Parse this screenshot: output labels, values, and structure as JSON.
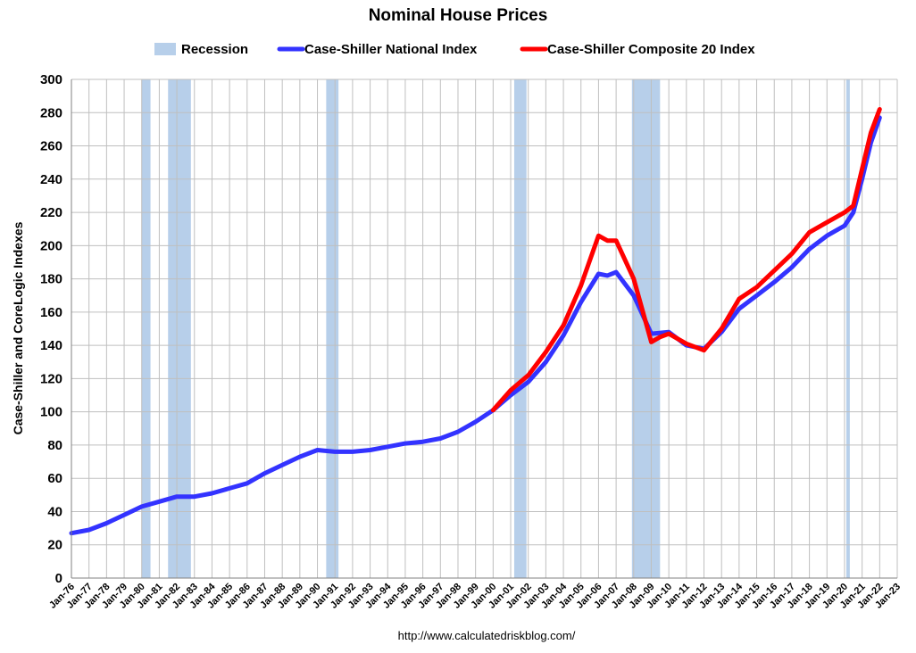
{
  "chart_data": {
    "type": "line",
    "title": "Nominal House Prices",
    "ylabel": "Case-Shiller and CoreLogic Indexes",
    "footer": "http://www.calculatedriskblog.com/",
    "ylim": [
      0,
      300
    ],
    "yticks": [
      0,
      20,
      40,
      60,
      80,
      100,
      120,
      140,
      160,
      180,
      200,
      220,
      240,
      260,
      280,
      300
    ],
    "xlim": [
      1976.0,
      2023.0
    ],
    "grid": true,
    "legend_position": "top",
    "xtick_labels": [
      "Jan-76",
      "Jan-77",
      "Jan-78",
      "Jan-79",
      "Jan-80",
      "Jan-81",
      "Jan-82",
      "Jan-83",
      "Jan-84",
      "Jan-85",
      "Jan-86",
      "Jan-87",
      "Jan-88",
      "Jan-89",
      "Jan-90",
      "Jan-91",
      "Jan-92",
      "Jan-93",
      "Jan-94",
      "Jan-95",
      "Jan-96",
      "Jan-97",
      "Jan-98",
      "Jan-99",
      "Jan-00",
      "Jan-01",
      "Jan-02",
      "Jan-03",
      "Jan-04",
      "Jan-05",
      "Jan-06",
      "Jan-07",
      "Jan-08",
      "Jan-09",
      "Jan-10",
      "Jan-11",
      "Jan-12",
      "Jan-13",
      "Jan-14",
      "Jan-15",
      "Jan-16",
      "Jan-17",
      "Jan-18",
      "Jan-19",
      "Jan-20",
      "Jan-21",
      "Jan-22",
      "Jan-23"
    ],
    "recession": {
      "name": "Recession",
      "color": "#b7cfea",
      "periods": [
        [
          1980.0,
          1980.5
        ],
        [
          1981.5,
          1982.8
        ],
        [
          1990.5,
          1991.2
        ],
        [
          2001.2,
          2001.9
        ],
        [
          2007.9,
          2009.5
        ],
        [
          2020.1,
          2020.3
        ]
      ]
    },
    "series": [
      {
        "name": "Case-Shiller National Index",
        "color": "#3333ff",
        "x": [
          1976,
          1977,
          1978,
          1979,
          1980,
          1981,
          1982,
          1983,
          1984,
          1985,
          1986,
          1987,
          1988,
          1989,
          1990,
          1991,
          1992,
          1993,
          1994,
          1995,
          1996,
          1997,
          1998,
          1999,
          2000,
          2001,
          2002,
          2003,
          2004,
          2005,
          2006,
          2006.5,
          2007,
          2008,
          2009,
          2010,
          2011,
          2012,
          2013,
          2014,
          2015,
          2016,
          2017,
          2018,
          2019,
          2020,
          2020.5,
          2021,
          2021.5,
          2022
        ],
        "values": [
          27,
          29,
          33,
          38,
          43,
          46,
          49,
          49,
          51,
          54,
          57,
          63,
          68,
          73,
          77,
          76,
          76,
          77,
          79,
          81,
          82,
          84,
          88,
          94,
          101,
          110,
          118,
          130,
          146,
          166,
          183,
          182,
          184,
          170,
          147,
          148,
          140,
          138,
          148,
          162,
          170,
          178,
          187,
          198,
          206,
          212,
          220,
          240,
          262,
          277
        ]
      },
      {
        "name": "Case-Shiller Composite 20 Index",
        "color": "#ff0000",
        "x": [
          2000,
          2001,
          2002,
          2003,
          2004,
          2005,
          2006,
          2006.5,
          2007,
          2008,
          2009,
          2009.5,
          2010,
          2011,
          2012,
          2013,
          2014,
          2015,
          2016,
          2017,
          2018,
          2019,
          2020,
          2020.5,
          2021,
          2021.5,
          2022
        ],
        "values": [
          101,
          113,
          122,
          136,
          152,
          176,
          206,
          203,
          203,
          180,
          142,
          145,
          147,
          141,
          137,
          150,
          168,
          175,
          185,
          195,
          208,
          214,
          220,
          224,
          246,
          268,
          282
        ]
      }
    ]
  }
}
